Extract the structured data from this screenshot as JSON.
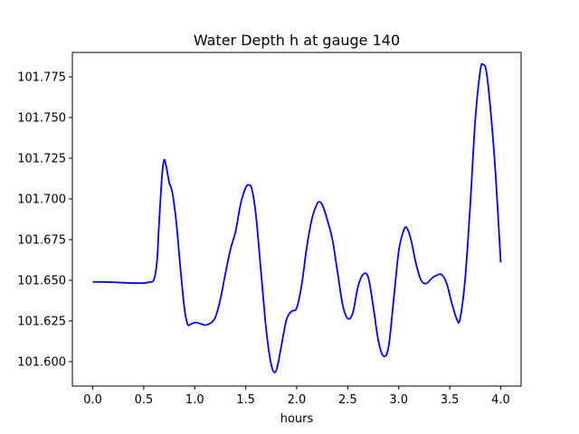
{
  "chart_data": {
    "type": "line",
    "title": "Water Depth h at gauge 140",
    "xlabel": "hours",
    "ylabel": "",
    "xlim": [
      -0.2,
      4.2
    ],
    "ylim": [
      101.585,
      101.79
    ],
    "xticks": [
      0.0,
      0.5,
      1.0,
      1.5,
      2.0,
      2.5,
      3.0,
      3.5,
      4.0
    ],
    "xtick_labels": [
      "0.0",
      "0.5",
      "1.0",
      "1.5",
      "2.0",
      "2.5",
      "3.0",
      "3.5",
      "4.0"
    ],
    "yticks": [
      101.6,
      101.625,
      101.65,
      101.675,
      101.7,
      101.725,
      101.75,
      101.775
    ],
    "ytick_labels": [
      "101.600",
      "101.625",
      "101.650",
      "101.675",
      "101.700",
      "101.725",
      "101.750",
      "101.775"
    ],
    "grid": false,
    "series": [
      {
        "color": "#0000ff",
        "x": [
          0.0,
          0.1,
          0.2,
          0.3,
          0.4,
          0.5,
          0.55,
          0.6,
          0.63,
          0.65,
          0.68,
          0.7,
          0.72,
          0.75,
          0.78,
          0.82,
          0.86,
          0.9,
          0.93,
          0.96,
          1.0,
          1.05,
          1.1,
          1.15,
          1.2,
          1.25,
          1.3,
          1.35,
          1.4,
          1.45,
          1.5,
          1.53,
          1.56,
          1.6,
          1.65,
          1.7,
          1.75,
          1.79,
          1.82,
          1.85,
          1.9,
          1.95,
          2.0,
          2.05,
          2.1,
          2.15,
          2.2,
          2.23,
          2.26,
          2.3,
          2.35,
          2.4,
          2.45,
          2.5,
          2.55,
          2.6,
          2.65,
          2.7,
          2.75,
          2.8,
          2.85,
          2.9,
          2.95,
          3.0,
          3.05,
          3.08,
          3.12,
          3.17,
          3.22,
          3.27,
          3.32,
          3.37,
          3.42,
          3.47,
          3.52,
          3.57,
          3.6,
          3.65,
          3.7,
          3.75,
          3.8,
          3.83,
          3.86,
          3.9,
          3.95,
          4.0
        ],
        "y": [
          101.649,
          101.649,
          101.6488,
          101.6485,
          101.6483,
          101.6483,
          101.6488,
          101.6505,
          101.662,
          101.685,
          101.715,
          101.724,
          101.72,
          101.71,
          101.704,
          101.685,
          101.657,
          101.632,
          101.623,
          101.623,
          101.624,
          101.6235,
          101.6225,
          101.6235,
          101.627,
          101.638,
          101.654,
          101.669,
          101.68,
          101.697,
          101.707,
          101.7085,
          101.706,
          101.69,
          101.655,
          101.62,
          101.598,
          101.5935,
          101.6,
          101.61,
          101.626,
          101.631,
          101.633,
          101.648,
          101.671,
          101.688,
          101.697,
          101.698,
          101.695,
          101.687,
          101.675,
          101.655,
          101.635,
          101.6265,
          101.63,
          101.646,
          101.6535,
          101.652,
          101.634,
          101.613,
          101.6035,
          101.609,
          101.638,
          101.668,
          101.681,
          101.682,
          101.675,
          101.66,
          101.65,
          101.648,
          101.651,
          101.653,
          101.6535,
          101.648,
          101.636,
          101.626,
          101.626,
          101.65,
          101.695,
          101.748,
          101.779,
          101.7825,
          101.778,
          101.755,
          101.715,
          101.661
        ]
      }
    ]
  }
}
